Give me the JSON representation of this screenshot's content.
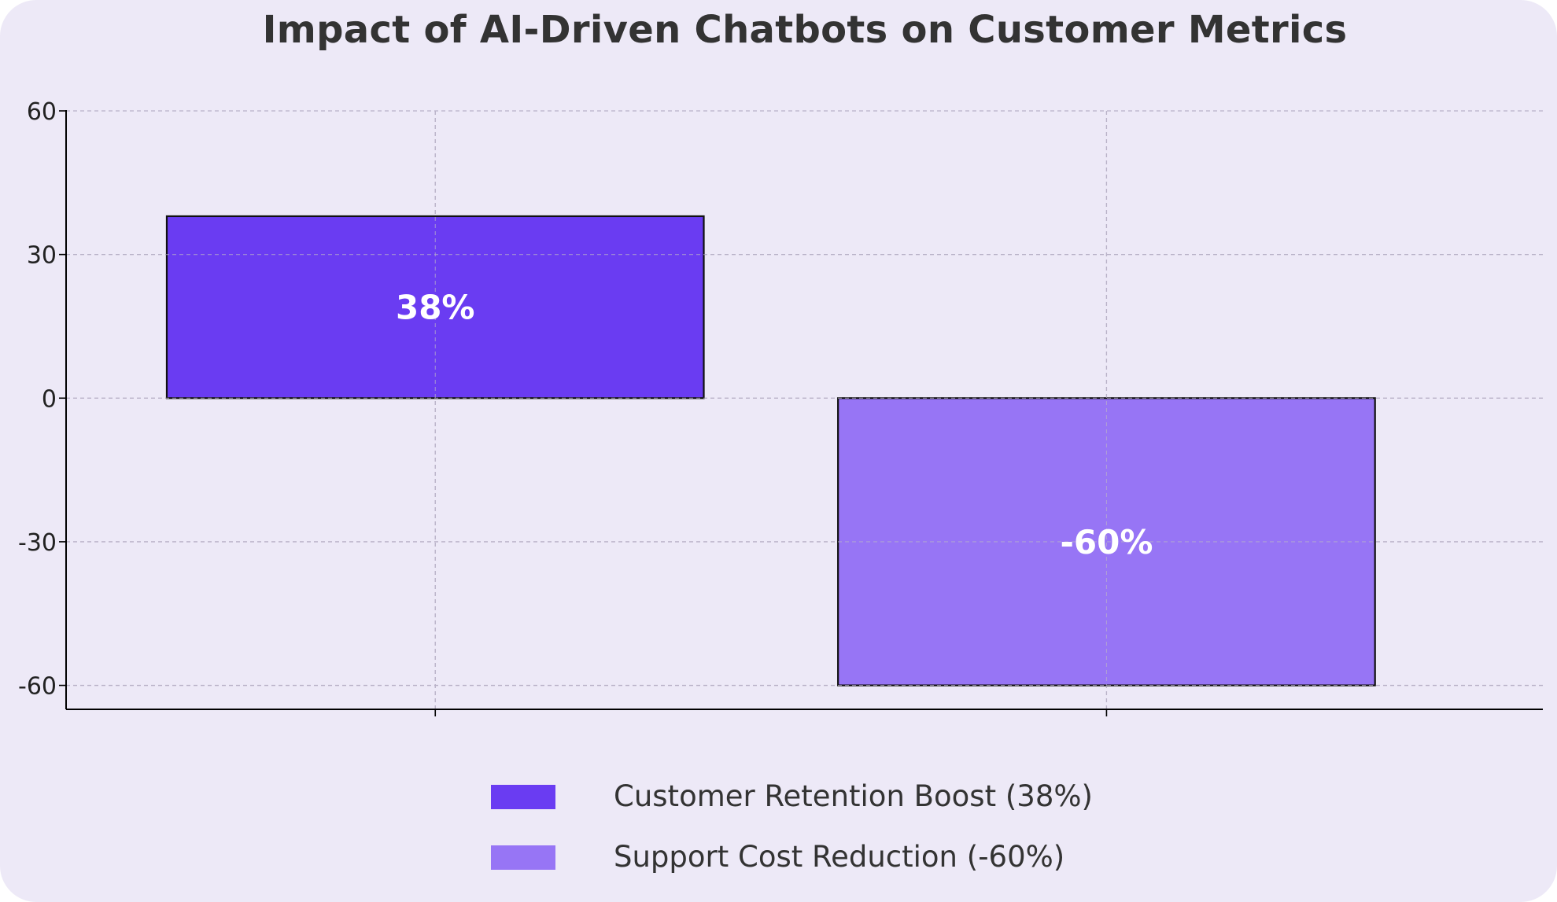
{
  "chart_data": {
    "type": "bar",
    "title": "Impact of AI-Driven Chatbots on Customer Metrics",
    "xlabel": "",
    "ylabel": "",
    "categories": [
      "Customer Retention Boost",
      "Support Cost Reduction"
    ],
    "values": [
      38,
      -60
    ],
    "data_labels": [
      "38%",
      "-60%"
    ],
    "colors": [
      "#6a3cf2",
      "#9775f5"
    ],
    "ylim": [
      -65,
      60
    ],
    "yticks": [
      60,
      30,
      0,
      -30,
      -60
    ],
    "grid": true,
    "legend": {
      "placement": "bottom-center",
      "entries": [
        "Customer Retention Boost (38%)",
        "Support Cost Reduction (-60%)"
      ]
    }
  }
}
